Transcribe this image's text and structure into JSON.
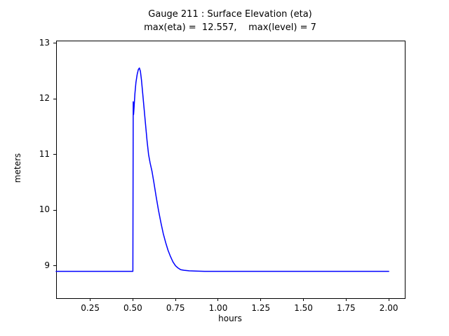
{
  "figure": {
    "title_line1": "Gauge 211 : Surface Elevation (eta)",
    "title_line2": "max(eta) =  12.557,    max(level) = 7"
  },
  "chart_data": {
    "type": "line",
    "title": "Gauge 211 : Surface Elevation (eta)",
    "subtitle": "max(eta) =  12.557,    max(level) = 7",
    "xlabel": "hours",
    "ylabel": "meters",
    "xlim": [
      0.05,
      2.09
    ],
    "ylim": [
      8.43,
      13.05
    ],
    "xticks": [
      0.25,
      0.5,
      0.75,
      1.0,
      1.25,
      1.5,
      1.75,
      2.0
    ],
    "xtick_labels": [
      "0.25",
      "0.50",
      "0.75",
      "1.00",
      "1.25",
      "1.50",
      "1.75",
      "2.00"
    ],
    "yticks": [
      9,
      10,
      11,
      12,
      13
    ],
    "ytick_labels": [
      "9",
      "10",
      "11",
      "12",
      "13"
    ],
    "line_color": "#0000ff",
    "grid": false,
    "legend": "none",
    "max_eta": 12.557,
    "max_level": 7,
    "series": [
      {
        "name": "eta",
        "x": [
          0.05,
          0.2,
          0.35,
          0.45,
          0.49,
          0.5,
          0.502,
          0.504,
          0.507,
          0.512,
          0.518,
          0.525,
          0.532,
          0.538,
          0.544,
          0.55,
          0.557,
          0.565,
          0.574,
          0.583,
          0.592,
          0.601,
          0.612,
          0.623,
          0.636,
          0.65,
          0.664,
          0.678,
          0.692,
          0.706,
          0.72,
          0.735,
          0.75,
          0.765,
          0.78,
          0.8,
          0.83,
          0.87,
          0.92,
          1.0,
          1.1,
          1.25,
          1.5,
          1.75,
          2.0
        ],
        "y": [
          8.9,
          8.9,
          8.9,
          8.9,
          8.9,
          8.9,
          11.95,
          11.72,
          11.85,
          12.1,
          12.3,
          12.44,
          12.53,
          12.557,
          12.5,
          12.35,
          12.12,
          11.85,
          11.55,
          11.25,
          11.0,
          10.85,
          10.7,
          10.5,
          10.25,
          10.0,
          9.78,
          9.58,
          9.42,
          9.28,
          9.17,
          9.07,
          9.0,
          8.96,
          8.93,
          8.92,
          8.91,
          8.905,
          8.9,
          8.9,
          8.9,
          8.9,
          8.9,
          8.9,
          8.9
        ]
      }
    ]
  }
}
